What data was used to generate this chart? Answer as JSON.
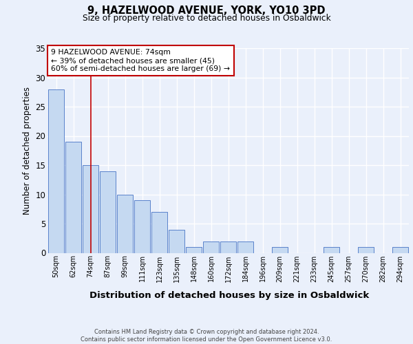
{
  "title1": "9, HAZELWOOD AVENUE, YORK, YO10 3PD",
  "title2": "Size of property relative to detached houses in Osbaldwick",
  "xlabel": "Distribution of detached houses by size in Osbaldwick",
  "ylabel": "Number of detached properties",
  "categories": [
    "50sqm",
    "62sqm",
    "74sqm",
    "87sqm",
    "99sqm",
    "111sqm",
    "123sqm",
    "135sqm",
    "148sqm",
    "160sqm",
    "172sqm",
    "184sqm",
    "196sqm",
    "209sqm",
    "221sqm",
    "233sqm",
    "245sqm",
    "257sqm",
    "270sqm",
    "282sqm",
    "294sqm"
  ],
  "values": [
    28,
    19,
    15,
    14,
    10,
    9,
    7,
    4,
    1,
    2,
    2,
    2,
    0,
    1,
    0,
    0,
    1,
    0,
    1,
    0,
    1
  ],
  "bar_color": "#c5d9f1",
  "bar_edge_color": "#4472c4",
  "highlight_index": 2,
  "highlight_line_color": "#c00000",
  "ylim": [
    0,
    35
  ],
  "yticks": [
    0,
    5,
    10,
    15,
    20,
    25,
    30,
    35
  ],
  "annotation_text": "9 HAZELWOOD AVENUE: 74sqm\n← 39% of detached houses are smaller (45)\n60% of semi-detached houses are larger (69) →",
  "annotation_box_color": "#ffffff",
  "annotation_box_edge": "#c00000",
  "footer_text": "Contains HM Land Registry data © Crown copyright and database right 2024.\nContains public sector information licensed under the Open Government Licence v3.0.",
  "background_color": "#eaf0fb",
  "plot_bg_color": "#eaf0fb",
  "grid_color": "#ffffff"
}
